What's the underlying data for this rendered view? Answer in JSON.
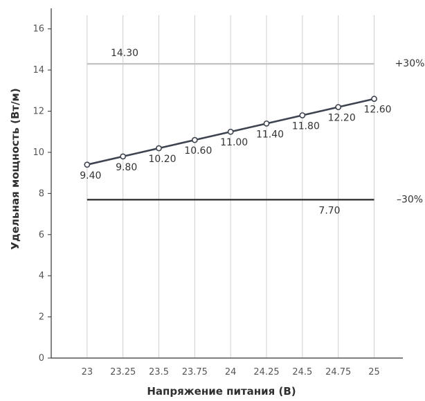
{
  "chart_data": {
    "type": "line",
    "xlabel": "Напряжение питания (В)",
    "ylabel": "Удельная мощность (Вт/м)",
    "x_ticks": [
      "23",
      "23.25",
      "23.5",
      "23.75",
      "24",
      "24.25",
      "24.5",
      "24.75",
      "25"
    ],
    "y_ticks": [
      "0",
      "2",
      "4",
      "6",
      "8",
      "10",
      "12",
      "14",
      "16"
    ],
    "xlim": [
      22.75,
      25.2
    ],
    "ylim": [
      0,
      17
    ],
    "grid": "vertical",
    "series": [
      {
        "x": [
          23,
          23.25,
          23.5,
          23.75,
          24,
          24.25,
          24.5,
          24.75,
          25
        ],
        "values": [
          9.4,
          9.8,
          10.2,
          10.6,
          11.0,
          11.4,
          11.8,
          12.2,
          12.6
        ],
        "labels": [
          "9.40",
          "9.80",
          "10.20",
          "10.60",
          "11.00",
          "11.40",
          "11.80",
          "12.20",
          "12.60"
        ],
        "color": "#3d4450"
      }
    ],
    "reference_lines": [
      {
        "value": 14.3,
        "label": "14.30",
        "band": "+30%",
        "color": "#c4c4c4"
      },
      {
        "value": 7.7,
        "label": "7.70",
        "band": "–30%",
        "color": "#333333"
      }
    ]
  }
}
